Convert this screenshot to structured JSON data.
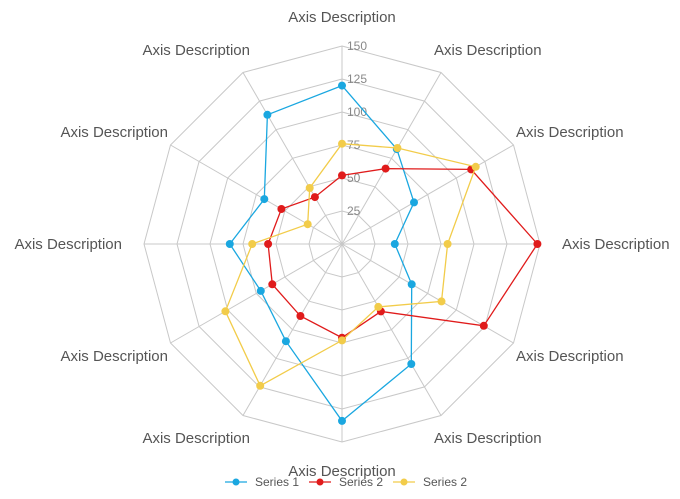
{
  "chart_data": {
    "type": "radar",
    "axes": [
      "Axis Description",
      "Axis Description",
      "Axis Description",
      "Axis Description",
      "Axis Description",
      "Axis Description",
      "Axis Description",
      "Axis Description",
      "Axis Description",
      "Axis Description",
      "Axis Description",
      "Axis Description"
    ],
    "r_range": [
      0,
      150
    ],
    "ticks": [
      25,
      50,
      75,
      100,
      125,
      150
    ],
    "tick_labels": [
      "25",
      "50",
      "75",
      "100",
      "125",
      "150"
    ],
    "grid": true,
    "legend_position": "bottom",
    "series": [
      {
        "name": "Series 1",
        "color": "#1aa7e0",
        "values": [
          120,
          83,
          63,
          40,
          61,
          105,
          134,
          85,
          71,
          85,
          68,
          113
        ]
      },
      {
        "name": "Series 2",
        "color": "#e01b1b",
        "values": [
          52,
          66,
          113,
          148,
          124,
          59,
          71,
          63,
          61,
          56,
          53,
          41
        ]
      },
      {
        "name": "Series 2",
        "color": "#f2cc4a",
        "values": [
          76,
          84,
          117,
          80,
          87,
          55,
          73,
          124,
          102,
          68,
          30,
          49
        ]
      }
    ]
  }
}
